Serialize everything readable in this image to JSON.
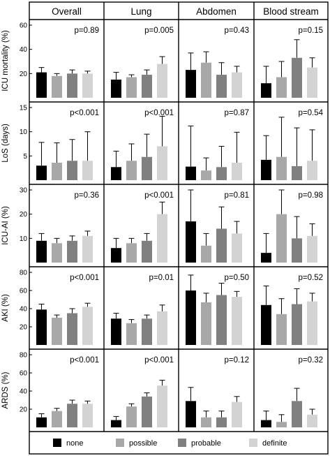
{
  "chart_data": {
    "type": "bar",
    "columns": [
      "Overall",
      "Lung",
      "Abdomen",
      "Blood stream"
    ],
    "rows": [
      {
        "ylabel": "ICU mortality (%)",
        "ylim": [
          0,
          60
        ],
        "yticks": [
          20,
          40,
          60
        ],
        "pvalues": [
          "p=0.89",
          "p=0.005",
          "p=0.43",
          "p=0.15"
        ],
        "panels": [
          {
            "values": [
              21,
              18,
              20,
              20
            ],
            "errors": [
              25,
              20,
              23,
              22
            ]
          },
          {
            "values": [
              15,
              17,
              19,
              28
            ],
            "errors": [
              21,
              19,
              23,
              34
            ]
          },
          {
            "values": [
              23,
              29,
              19,
              21
            ],
            "errors": [
              37,
              38,
              29,
              26
            ]
          },
          {
            "values": [
              12,
              17,
              33,
              25
            ],
            "errors": [
              26,
              30,
              48,
              33
            ]
          }
        ]
      },
      {
        "ylabel": "LoS (days)",
        "ylim": [
          0,
          15
        ],
        "yticks": [
          5,
          10,
          15
        ],
        "pvalues": [
          "p<0.001",
          "p<0.001",
          "p=0.87",
          "p=0.54"
        ],
        "panels": [
          {
            "values": [
              3.0,
              3.6,
              4.0,
              4.0
            ],
            "errors": [
              7.8,
              7.7,
              8.4,
              10.0
            ]
          },
          {
            "values": [
              2.7,
              4.0,
              4.8,
              7.0
            ],
            "errors": [
              6.0,
              7.5,
              9.5,
              13.2
            ]
          },
          {
            "values": [
              2.8,
              2.0,
              2.7,
              3.6
            ],
            "errors": [
              11.2,
              4.6,
              7.0,
              9.9
            ]
          },
          {
            "values": [
              4.2,
              4.8,
              2.9,
              4.0
            ],
            "errors": [
              9.2,
              13.0,
              10.8,
              10.4
            ]
          }
        ]
      },
      {
        "ylabel": "ICU-AI (%)",
        "ylim": [
          0,
          30
        ],
        "yticks": [
          10,
          20,
          30
        ],
        "pvalues": [
          "p=0.36",
          "p<0.001",
          "p=0.81",
          "p=0.98"
        ],
        "panels": [
          {
            "values": [
              9,
              8,
              9,
              11
            ],
            "errors": [
              12,
              10,
              11,
              13
            ]
          },
          {
            "values": [
              6,
              8,
              9,
              20
            ],
            "errors": [
              10,
              10,
              12,
              25
            ]
          },
          {
            "values": [
              17,
              7,
              14,
              12
            ],
            "errors": [
              30,
              12,
              23,
              17
            ]
          },
          {
            "values": [
              4,
              20,
              10,
              11
            ],
            "errors": [
              12,
              30,
              19,
              16
            ]
          }
        ]
      },
      {
        "ylabel": "AKI (%)",
        "ylim": [
          0,
          80
        ],
        "yticks": [
          20,
          40,
          60,
          80
        ],
        "pvalues": [
          "p<0.001",
          "p=0.01",
          "p=0.50",
          "p=0.52"
        ],
        "panels": [
          {
            "values": [
              39,
              30,
              35,
              42
            ],
            "errors": [
              45,
              33,
              40,
              46
            ]
          },
          {
            "values": [
              29,
              24,
              29,
              37
            ],
            "errors": [
              35,
              28,
              33,
              44
            ]
          },
          {
            "values": [
              60,
              47,
              55,
              53
            ],
            "errors": [
              77,
              57,
              68,
              59
            ]
          },
          {
            "values": [
              44,
              34,
              45,
              48
            ],
            "errors": [
              65,
              51,
              62,
              57
            ]
          }
        ]
      },
      {
        "ylabel": "ARDS (%)",
        "ylim": [
          0,
          80
        ],
        "yticks": [
          20,
          40,
          60,
          80
        ],
        "pvalues": [
          "p<0.001",
          "p<0.001",
          "p=0.12",
          "p=0.32"
        ],
        "panels": [
          {
            "values": [
              11,
              18,
              26,
              26
            ],
            "errors": [
              15,
              21,
              30,
              29
            ]
          },
          {
            "values": [
              8,
              23,
              34,
              46
            ],
            "errors": [
              12,
              26,
              38,
              52
            ]
          },
          {
            "values": [
              29,
              11,
              11,
              28
            ],
            "errors": [
              44,
              18,
              18,
              34
            ]
          },
          {
            "values": [
              8,
              6,
              29,
              14
            ],
            "errors": [
              18,
              14,
              43,
              20
            ]
          }
        ]
      }
    ],
    "legend": [
      {
        "label": "none",
        "color": "#000000"
      },
      {
        "label": "possible",
        "color": "#a8a8a8"
      },
      {
        "label": "probable",
        "color": "#808080"
      },
      {
        "label": "definite",
        "color": "#d3d3d3"
      }
    ],
    "grid": false,
    "legend_position": "bottom"
  }
}
